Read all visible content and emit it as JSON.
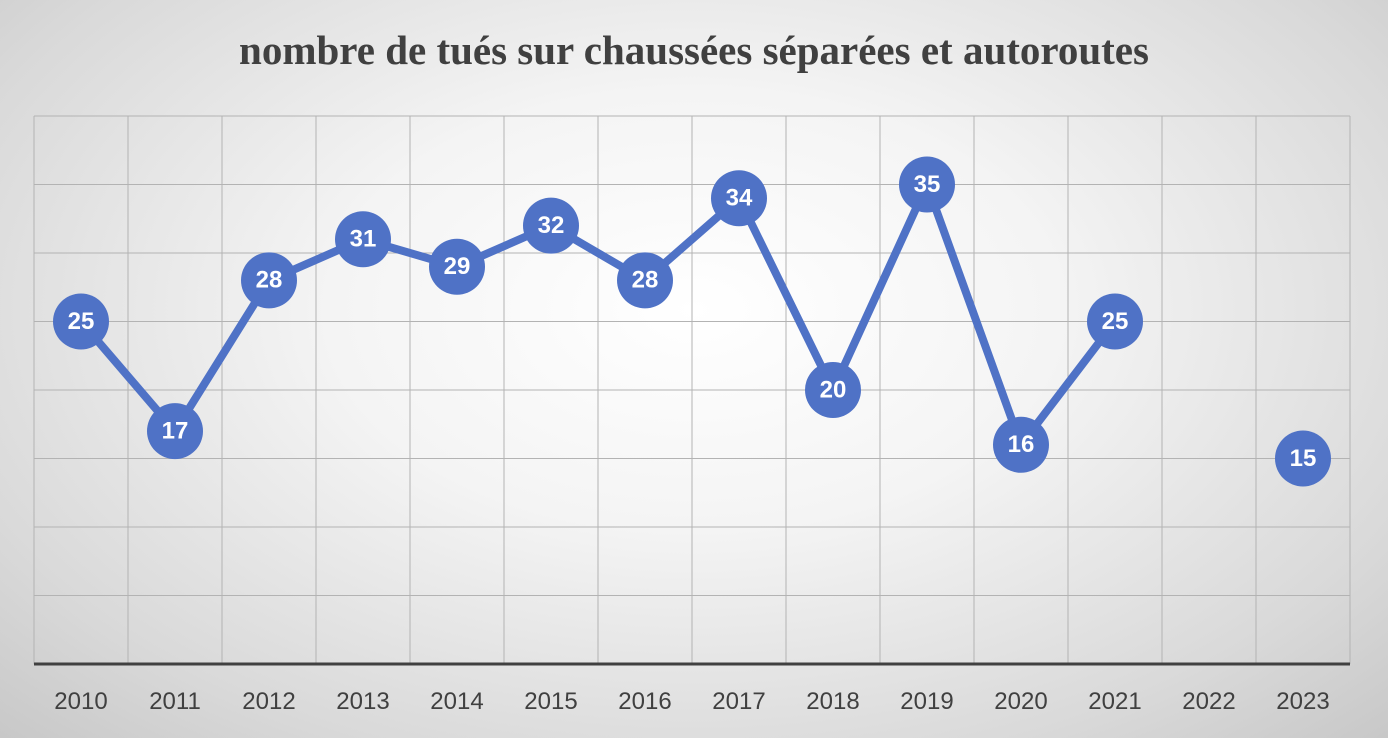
{
  "chart_data": {
    "type": "line",
    "title": "nombre de tués sur chaussées séparées et autoroutes",
    "xlabel": "",
    "ylabel": "",
    "categories": [
      "2010",
      "2011",
      "2012",
      "2013",
      "2014",
      "2015",
      "2016",
      "2017",
      "2018",
      "2019",
      "2020",
      "2021",
      "2022",
      "2023"
    ],
    "values": [
      25,
      17,
      28,
      31,
      29,
      32,
      28,
      34,
      20,
      35,
      16,
      25,
      null,
      15
    ],
    "ylim": [
      0,
      40
    ],
    "y_gridline_step": 5,
    "y_tick_labels_shown": false,
    "grid": true,
    "legend": "none",
    "data_labels": true,
    "line_color": "#4f72c6",
    "marker_color": "#4f72c6"
  }
}
